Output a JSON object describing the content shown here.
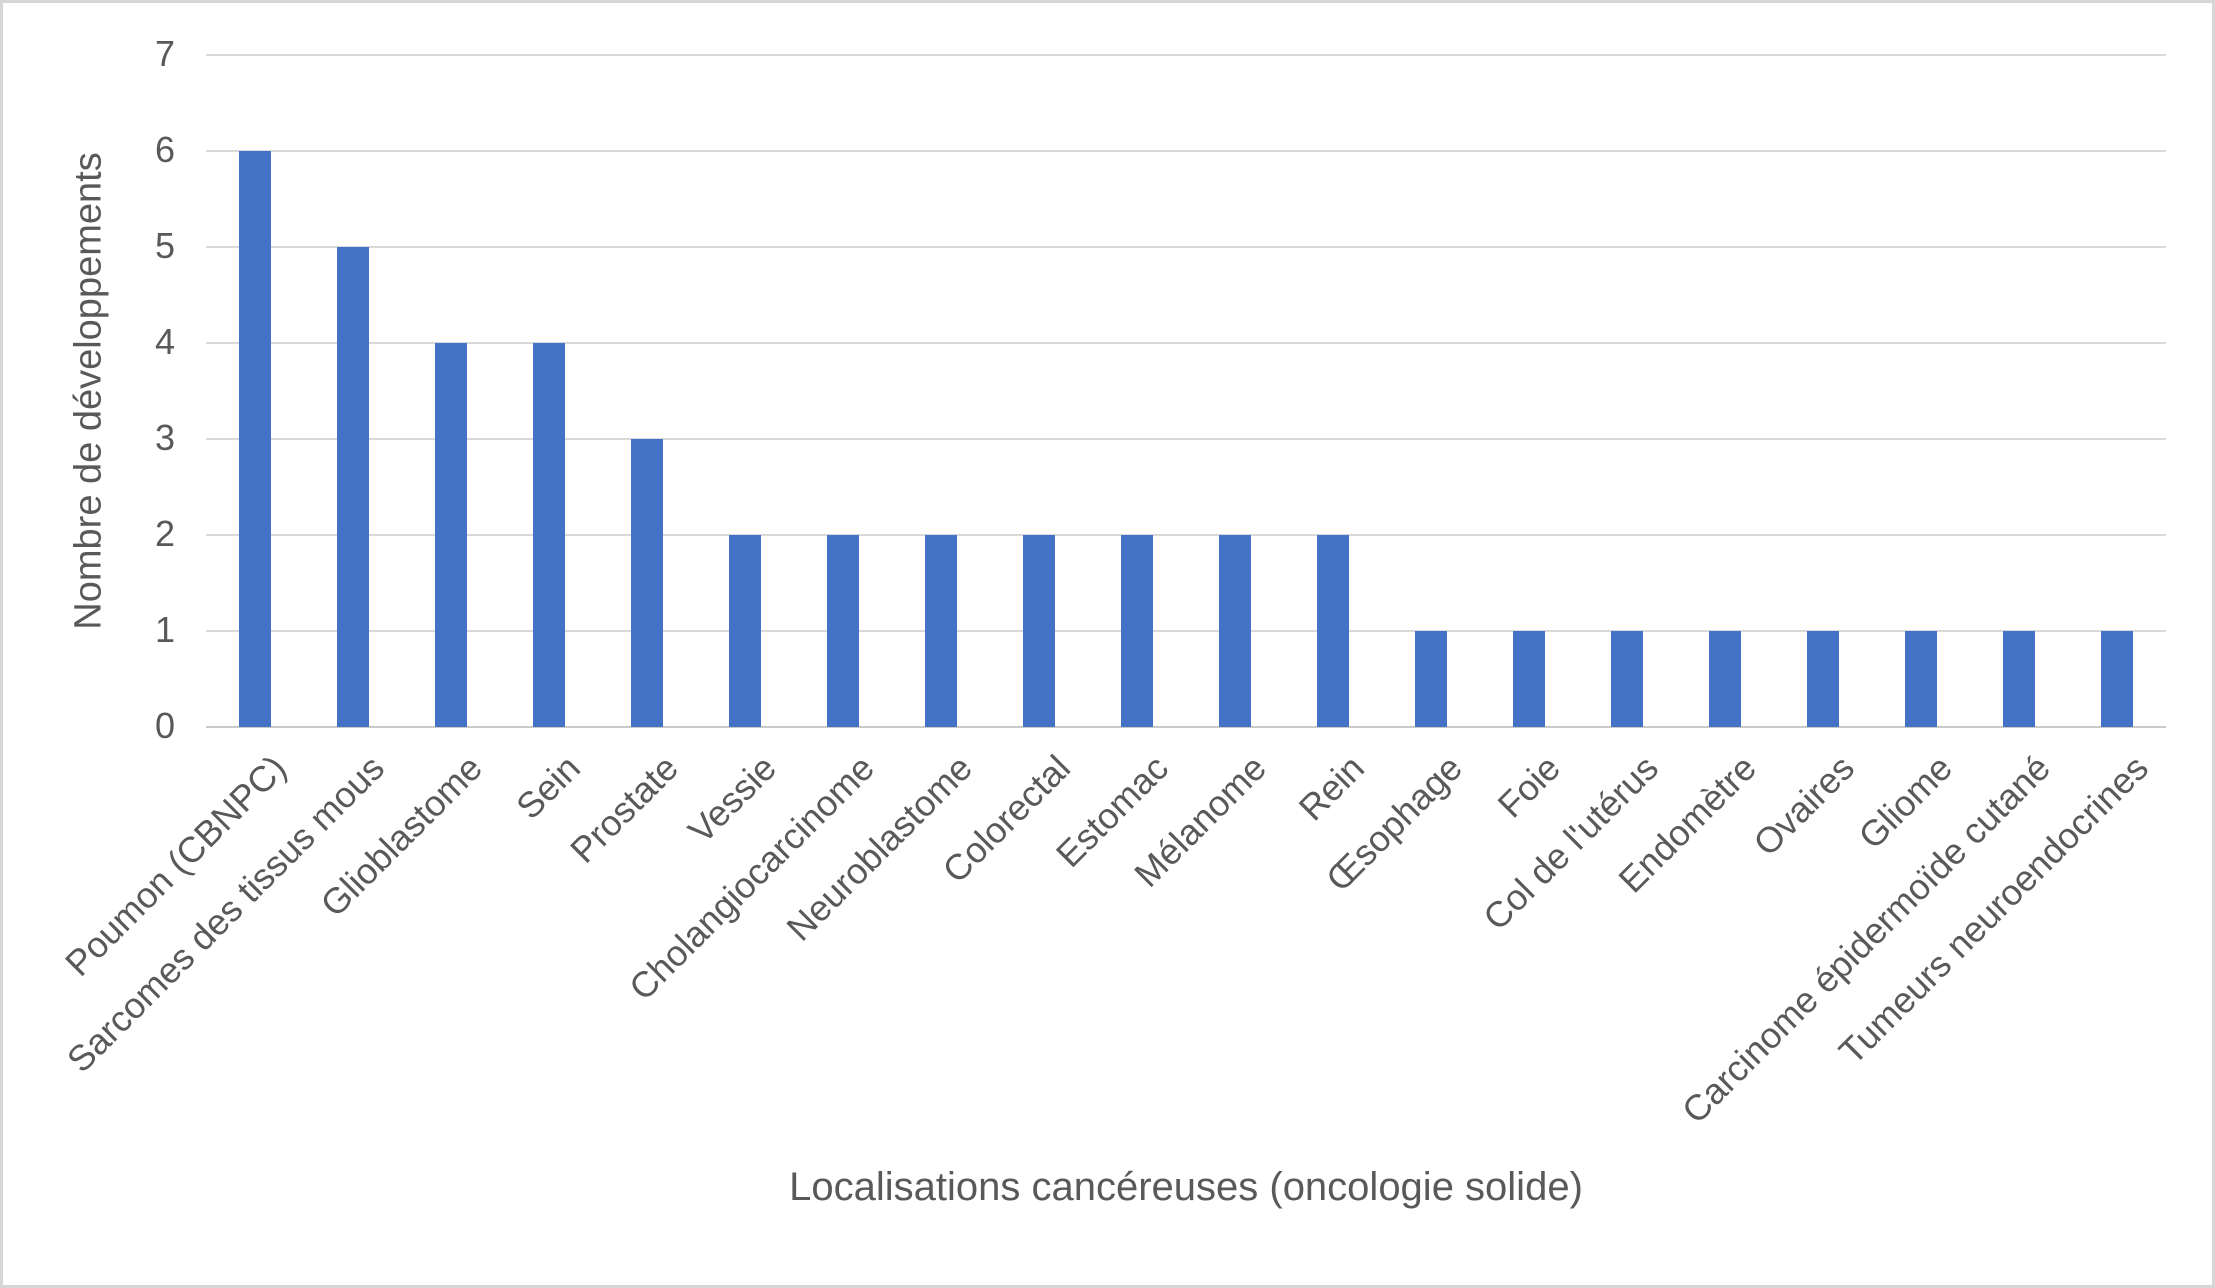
{
  "chart_data": {
    "type": "bar",
    "categories": [
      "Poumon (CBNPC)",
      "Sarcomes des tissus mous",
      "Glioblastome",
      "Sein",
      "Prostate",
      "Vessie",
      "Cholangiocarcinome",
      "Neuroblastome",
      "Colorectal",
      "Estomac",
      "Mélanome",
      "Rein",
      "Œsophage",
      "Foie",
      "Col de l'utérus",
      "Endomètre",
      "Ovaires",
      "Gliome",
      "Carcinome épidermoïde cutané",
      "Tumeurs neuroendocrines"
    ],
    "values": [
      6,
      5,
      4,
      4,
      3,
      2,
      2,
      2,
      2,
      2,
      2,
      2,
      1,
      1,
      1,
      1,
      1,
      1,
      1,
      1
    ],
    "xlabel": "Localisations cancéreuses (oncologie solide)",
    "ylabel": "Nombre de développements",
    "ylim": [
      0,
      7
    ],
    "yticks": [
      0,
      1,
      2,
      3,
      4,
      5,
      6,
      7
    ],
    "grid": true,
    "legend": false,
    "colors": {
      "bar": "#4472C4",
      "gridline": "#D9D9D9",
      "axis_line": "#C9C9C9",
      "text": "#595959",
      "border": "#D6D6D6",
      "background": "#FFFFFF"
    }
  }
}
